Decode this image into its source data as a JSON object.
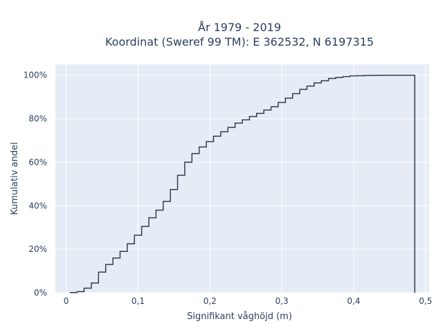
{
  "chart_data": {
    "type": "line",
    "line_shape": "step",
    "title_line1": "År 1979 - 2019",
    "title_line2": "Koordinat (Sweref 99 TM): E 362532, N 6197315",
    "xlabel": "Signifikant våghöjd (m)",
    "ylabel": "Kumulativ andel",
    "xlim": [
      -0.015,
      0.505
    ],
    "ylim": [
      0,
      1.05
    ],
    "x_ticks": [
      {
        "value": 0,
        "label": "0"
      },
      {
        "value": 0.1,
        "label": "0,1"
      },
      {
        "value": 0.2,
        "label": "0,2"
      },
      {
        "value": 0.3,
        "label": "0,3"
      },
      {
        "value": 0.4,
        "label": "0,4"
      },
      {
        "value": 0.5,
        "label": "0,5"
      }
    ],
    "y_ticks": [
      {
        "value": 0,
        "label": "0%"
      },
      {
        "value": 0.2,
        "label": "20%"
      },
      {
        "value": 0.4,
        "label": "40%"
      },
      {
        "value": 0.6,
        "label": "60%"
      },
      {
        "value": 0.8,
        "label": "80%"
      },
      {
        "value": 1.0,
        "label": "100%"
      }
    ],
    "grid": true,
    "colors": {
      "background": "#e5ecf6",
      "grid": "#ffffff",
      "line": "#2f3e4e"
    },
    "series": [
      {
        "x": [
          0.01,
          0.02,
          0.03,
          0.04,
          0.05,
          0.06,
          0.07,
          0.08,
          0.09,
          0.1,
          0.11,
          0.12,
          0.13,
          0.14,
          0.15,
          0.16,
          0.17,
          0.18,
          0.19,
          0.2,
          0.21,
          0.22,
          0.23,
          0.24,
          0.25,
          0.26,
          0.27,
          0.28,
          0.29,
          0.3,
          0.31,
          0.32,
          0.33,
          0.34,
          0.35,
          0.36,
          0.37,
          0.38,
          0.39,
          0.4,
          0.41,
          0.42,
          0.43,
          0.44,
          0.45,
          0.46,
          0.47,
          0.48
        ],
        "y": [
          0.001,
          0.005,
          0.021,
          0.045,
          0.095,
          0.13,
          0.16,
          0.19,
          0.225,
          0.265,
          0.305,
          0.345,
          0.38,
          0.42,
          0.475,
          0.54,
          0.6,
          0.64,
          0.67,
          0.695,
          0.72,
          0.74,
          0.76,
          0.78,
          0.795,
          0.81,
          0.825,
          0.84,
          0.855,
          0.875,
          0.895,
          0.915,
          0.935,
          0.95,
          0.965,
          0.975,
          0.985,
          0.99,
          0.994,
          0.997,
          0.998,
          0.999,
          0.9995,
          0.9998,
          1.0,
          1.0,
          1.0,
          1.0
        ]
      }
    ]
  }
}
